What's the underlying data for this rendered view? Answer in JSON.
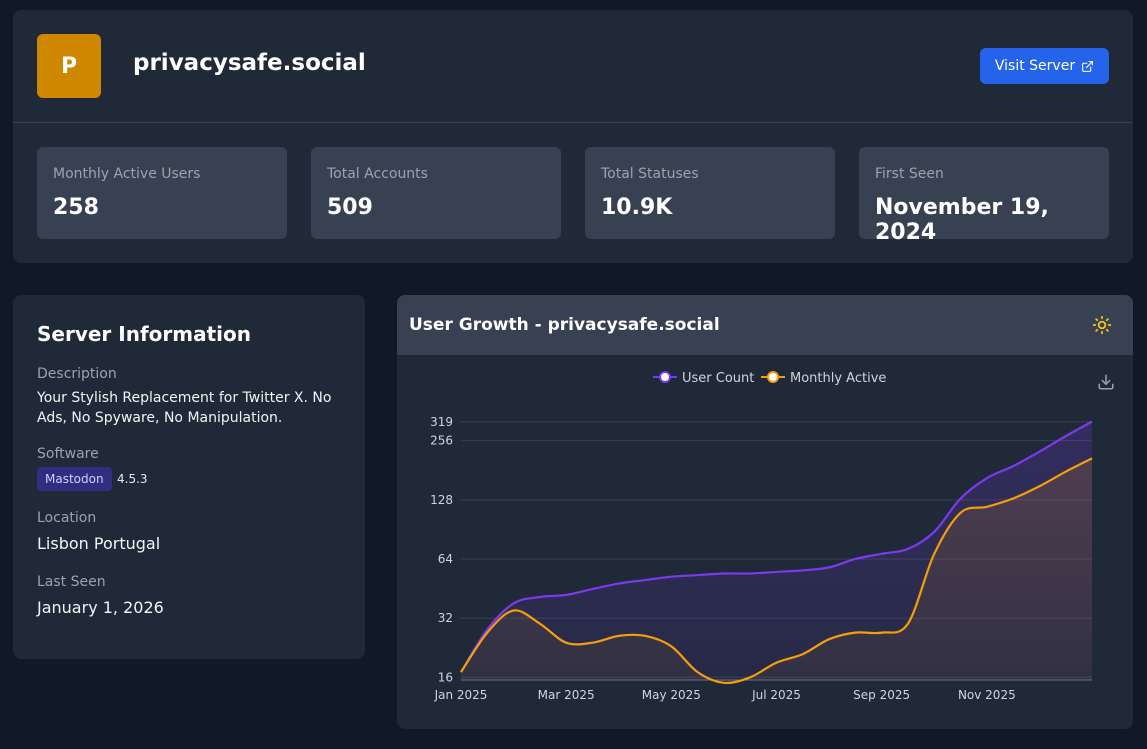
{
  "server": {
    "avatar_letter": "P",
    "name": "privacysafe.social",
    "visit_label": "Visit Server"
  },
  "stats": [
    {
      "label": "Monthly Active Users",
      "value": "258"
    },
    {
      "label": "Total Accounts",
      "value": "509"
    },
    {
      "label": "Total Statuses",
      "value": "10.9K"
    },
    {
      "label": "First Seen",
      "value": "November 19, 2024"
    }
  ],
  "info": {
    "title": "Server Information",
    "description_label": "Description",
    "description": "Your Stylish Replacement for Twitter X. No Ads, No Spyware, No Manipulation.",
    "software_label": "Software",
    "software": "Mastodon",
    "version": "4.5.3",
    "location_label": "Location",
    "location": "Lisbon Portugal",
    "last_seen_label": "Last Seen",
    "last_seen": "January 1, 2026"
  },
  "chart": {
    "title": "User Growth - privacysafe.social",
    "theme_icon": "sun-icon",
    "download_icon": "download-icon"
  },
  "colors": {
    "accent": "#2563eb",
    "avatar": "#d08700",
    "user_count": "#7c3aed",
    "monthly_active": "#f59e0b"
  },
  "chart_data": {
    "type": "area",
    "legend": [
      "User Count",
      "Monthly Active"
    ],
    "legend_position": "top-center",
    "y_scale": "log",
    "y_ticks": [
      16,
      32,
      64,
      128,
      256,
      319
    ],
    "x_ticks": [
      "Jan 2025",
      "Mar 2025",
      "May 2025",
      "Jul 2025",
      "Sep 2025",
      "Nov 2025"
    ],
    "grid": true,
    "x": [
      0,
      0.5,
      1,
      1.5,
      2,
      2.5,
      3,
      3.5,
      4,
      4.5,
      5,
      5.5,
      6,
      6.5,
      7,
      7.5,
      8,
      8.5,
      9,
      9.5,
      10,
      10.5,
      11,
      11.5,
      12
    ],
    "series": [
      {
        "name": "User Count",
        "values": [
          17,
          28,
          38,
          41,
          42,
          45,
          48,
          50,
          52,
          53,
          54,
          54,
          55,
          56,
          58,
          64,
          68,
          72,
          88,
          130,
          165,
          190,
          225,
          270,
          320
        ]
      },
      {
        "name": "Monthly Active",
        "values": [
          17,
          27,
          35,
          30,
          24,
          24,
          26,
          26,
          23,
          17,
          15,
          16,
          19,
          21,
          25,
          27,
          27,
          30,
          68,
          110,
          118,
          130,
          150,
          178,
          208
        ]
      }
    ]
  }
}
